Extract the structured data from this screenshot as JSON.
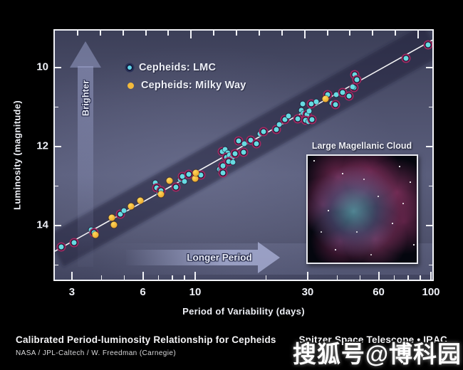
{
  "figure": {
    "legend": {
      "items": [
        {
          "label": "Cepheids: LMC",
          "marker": "lmc-ringed-dot",
          "dot_color": "#5fd3e8",
          "ring_color": "#0e1434"
        },
        {
          "label": "Cepheids: Milky Way",
          "marker": "mw-dot",
          "dot_color": "#f3ba3b"
        }
      ]
    },
    "arrows": {
      "up_label": "Brighter",
      "right_label": "Longer Period"
    },
    "inset": {
      "label": "Large Magellanic Cloud"
    },
    "top_axis_decorative_ticks": {
      "count": 16,
      "long_every": 5
    },
    "colors": {
      "plot_bg_mid": "#5a5e7c",
      "band": "#1c2138",
      "trendline": "#ffffff",
      "lmc_point": "#67dbe2",
      "lmc_ring": "#a12a62",
      "mw_point": "#f0b43c",
      "frame": "#f2f3f7"
    }
  },
  "chart_data": {
    "type": "scatter",
    "title": "Calibrated Period-luminosity Relationship for Cepheids",
    "xlabel": "Period of Variability (days)",
    "ylabel": "Luminosity (magnitude)",
    "x_scale": "log",
    "y_inverted_brighter_up": true,
    "xlim": [
      2.54,
      101.4
    ],
    "ylim": [
      15.37,
      9.06
    ],
    "x_ticks_major": [
      3,
      6,
      10,
      30,
      60,
      100
    ],
    "x_ticks_minor": [
      4,
      5,
      7,
      8,
      9,
      20,
      40,
      50,
      70,
      80,
      90
    ],
    "y_ticks_major": [
      10,
      12,
      14
    ],
    "y_ticks_minor": [
      11,
      13,
      15
    ],
    "grid": false,
    "legend_position": "top-left-inside",
    "trendline": {
      "p": [
        2.54,
        101.4
      ],
      "mag": [
        14.65,
        9.3
      ]
    },
    "band_half_width_mag": 0.45,
    "series": [
      {
        "name": "Cepheids: LMC",
        "point_format": "[period_days, magnitude, ringed(0|1)]",
        "points": [
          [
            2.7,
            14.54,
            1
          ],
          [
            3.06,
            14.43,
            1
          ],
          [
            3.62,
            14.11,
            0
          ],
          [
            3.72,
            14.18,
            1
          ],
          [
            4.82,
            13.71,
            1
          ],
          [
            4.99,
            13.62,
            0
          ],
          [
            6.78,
            12.92,
            0
          ],
          [
            6.87,
            13.05,
            1
          ],
          [
            7.01,
            13.17,
            0
          ],
          [
            7.16,
            13.12,
            1
          ],
          [
            8.28,
            13.03,
            1
          ],
          [
            8.64,
            12.83,
            0
          ],
          [
            8.82,
            12.76,
            1
          ],
          [
            9.01,
            12.88,
            0
          ],
          [
            9.39,
            12.7,
            1
          ],
          [
            10.6,
            12.72,
            1
          ],
          [
            12.7,
            12.58,
            0
          ],
          [
            12.85,
            12.61,
            0
          ],
          [
            13.1,
            12.49,
            1
          ],
          [
            13.1,
            12.67,
            1
          ],
          [
            13.0,
            12.13,
            1
          ],
          [
            13.4,
            12.07,
            0
          ],
          [
            13.8,
            12.16,
            0
          ],
          [
            13.6,
            12.27,
            1
          ],
          [
            14.0,
            12.22,
            0
          ],
          [
            14.4,
            12.29,
            0
          ],
          [
            13.9,
            12.38,
            1
          ],
          [
            14.5,
            12.4,
            0
          ],
          [
            14.8,
            12.18,
            1
          ],
          [
            15.3,
            11.86,
            1
          ],
          [
            16.1,
            12.14,
            1
          ],
          [
            16.2,
            11.93,
            0
          ],
          [
            17.2,
            11.84,
            1
          ],
          [
            18.2,
            11.93,
            1
          ],
          [
            18.8,
            11.68,
            0
          ],
          [
            19.5,
            11.62,
            1
          ],
          [
            22.1,
            11.57,
            1
          ],
          [
            22.8,
            11.44,
            0
          ],
          [
            24.0,
            11.32,
            1
          ],
          [
            24.9,
            11.23,
            0
          ],
          [
            27.2,
            11.3,
            1
          ],
          [
            29.6,
            11.26,
            1
          ],
          [
            28.2,
            11.08,
            0
          ],
          [
            28.8,
            11.15,
            0
          ],
          [
            29.8,
            11.19,
            1
          ],
          [
            30.4,
            11.1,
            0
          ],
          [
            29.4,
            11.33,
            1
          ],
          [
            30.2,
            11.37,
            0
          ],
          [
            31.2,
            11.32,
            1
          ],
          [
            28.6,
            10.92,
            0
          ],
          [
            31.0,
            10.92,
            1
          ],
          [
            32.6,
            10.86,
            0
          ],
          [
            36.4,
            10.68,
            1
          ],
          [
            38.0,
            10.9,
            0
          ],
          [
            39.3,
            10.94,
            1
          ],
          [
            39.6,
            10.68,
            0
          ],
          [
            42.1,
            10.63,
            1
          ],
          [
            44.9,
            10.72,
            1
          ],
          [
            47.2,
            10.5,
            1
          ],
          [
            47.5,
            10.18,
            1
          ],
          [
            48.5,
            10.31,
            1
          ],
          [
            46.6,
            10.49,
            0
          ],
          [
            78.4,
            9.77,
            1
          ],
          [
            97.4,
            9.42,
            1
          ]
        ]
      },
      {
        "name": "Cepheids: Milky Way",
        "point_format": "[period_days, magnitude]",
        "points": [
          [
            3.78,
            14.23
          ],
          [
            4.43,
            13.8
          ],
          [
            4.52,
            13.98
          ],
          [
            5.36,
            13.51
          ],
          [
            5.86,
            13.37
          ],
          [
            7.16,
            13.21
          ],
          [
            7.77,
            12.86
          ],
          [
            10.0,
            12.81
          ],
          [
            10.1,
            12.67
          ],
          [
            35.7,
            10.79
          ]
        ]
      }
    ]
  },
  "captions": {
    "title": "Calibrated Period-luminosity Relationship for Cepheids",
    "right": "Spitzer Space Telescope • IRAC",
    "credit": "NASA / JPL-Caltech / W. Freedman (Carnegie)"
  },
  "watermark": "搜狐号@博科园"
}
